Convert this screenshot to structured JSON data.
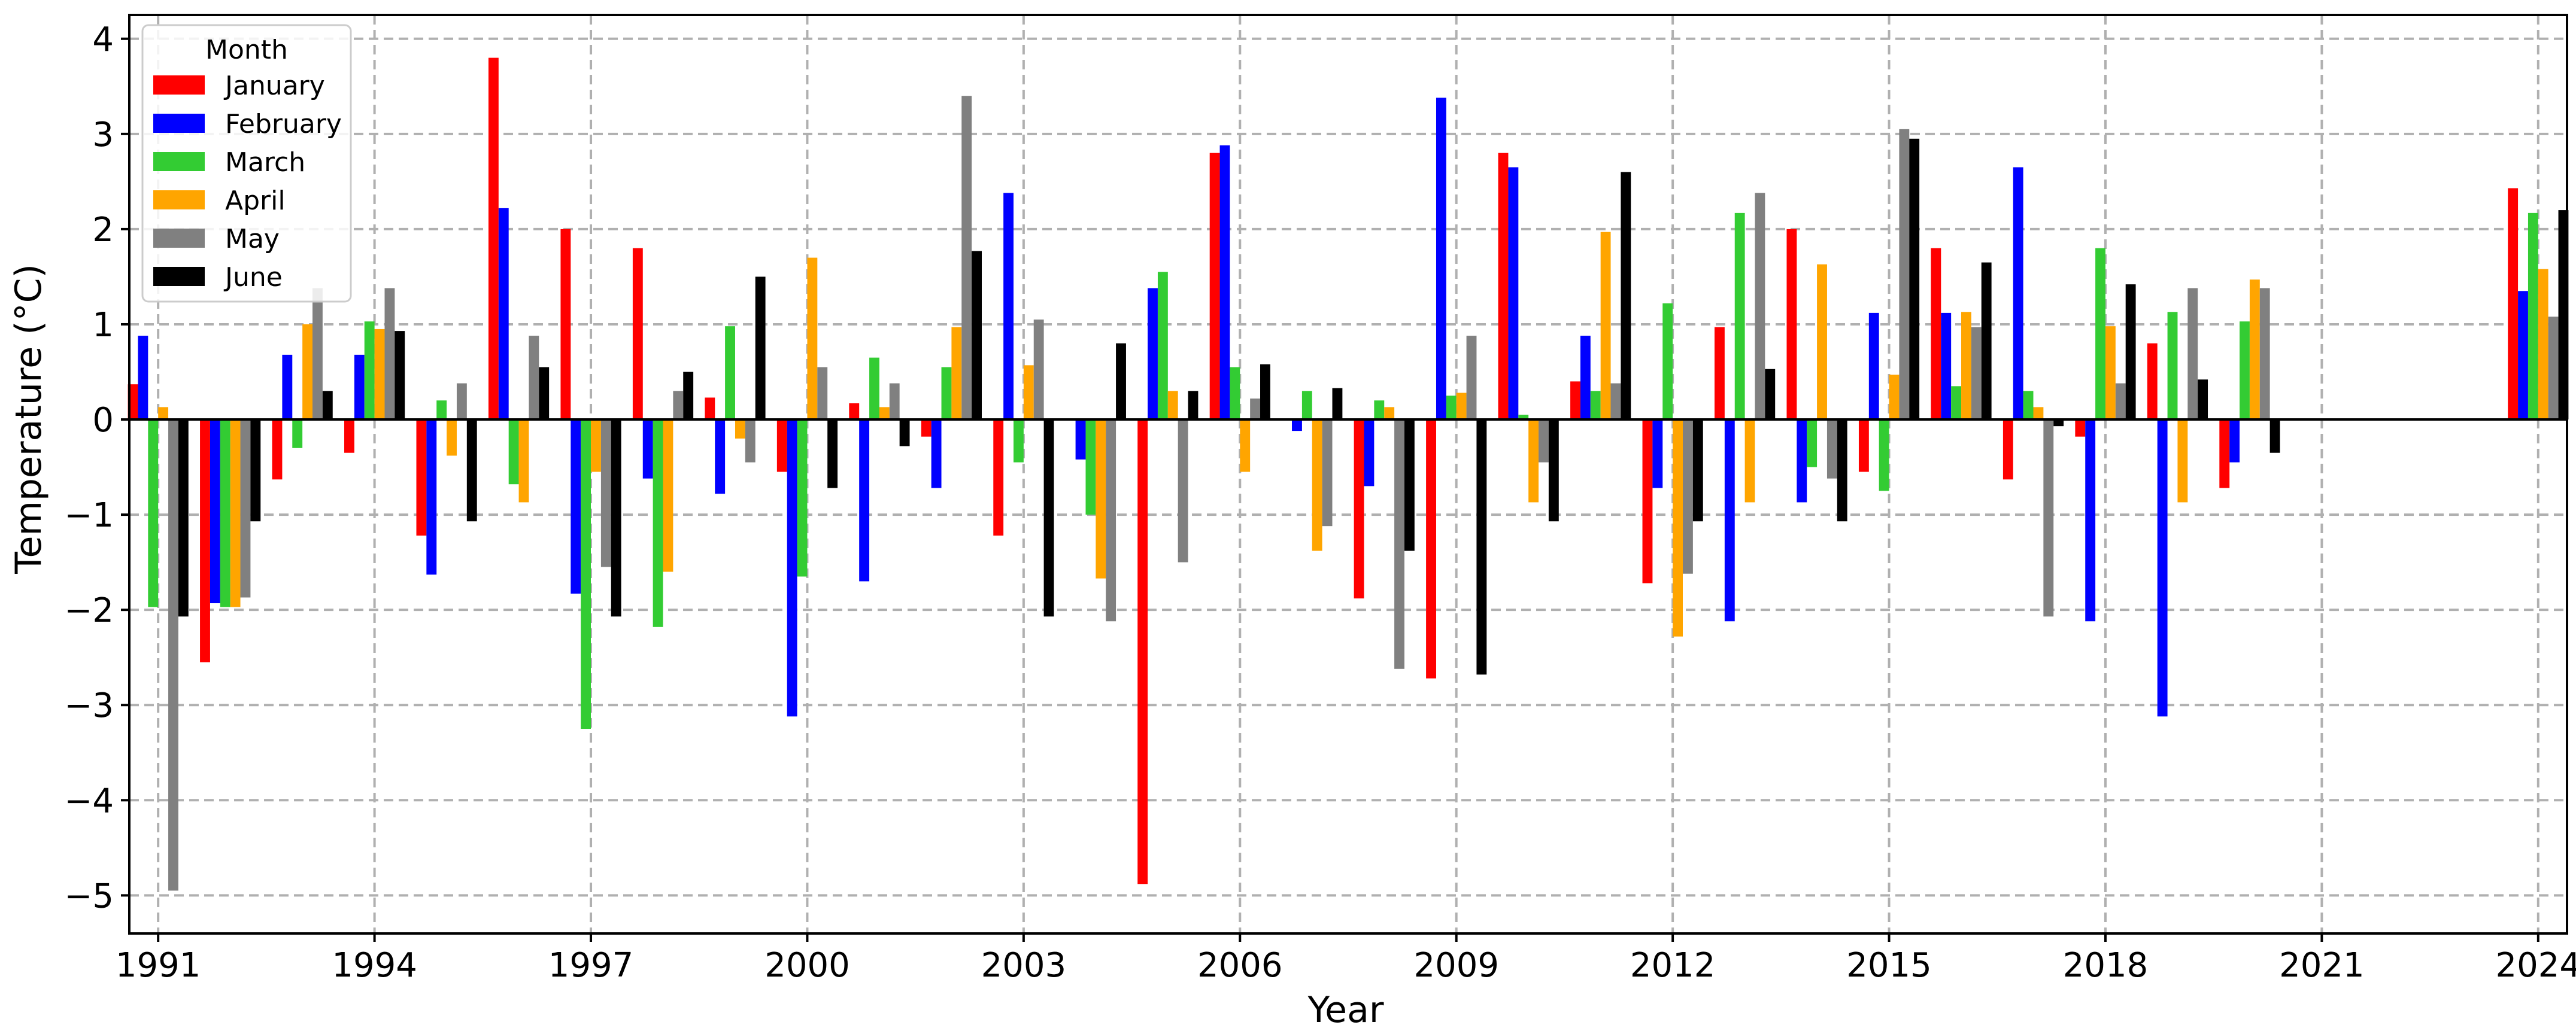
{
  "chart_data": {
    "type": "bar",
    "xlabel": "Year",
    "ylabel": "Temperature (°C)",
    "ylim": [
      -5.4,
      4.25
    ],
    "xlim": [
      1990.6,
      2024.4
    ],
    "grid": true,
    "legend": {
      "title": "Month",
      "placement": "top-left"
    },
    "x_ticks": [
      1991,
      1994,
      1997,
      2000,
      2003,
      2006,
      2009,
      2012,
      2015,
      2018,
      2021,
      2024
    ],
    "y_ticks": [
      -5,
      -4,
      -3,
      -2,
      -1,
      0,
      1,
      2,
      3,
      4
    ],
    "y_tick_labels": [
      "−5",
      "−4",
      "−3",
      "−2",
      "−1",
      "0",
      "1",
      "2",
      "3",
      "4"
    ],
    "categories": [
      1991,
      1992,
      1993,
      1994,
      1995,
      1996,
      1997,
      1998,
      1999,
      2000,
      2001,
      2002,
      2003,
      2004,
      2005,
      2006,
      2007,
      2008,
      2009,
      2010,
      2011,
      2012,
      2013,
      2014,
      2015,
      2016,
      2017,
      2018,
      2019,
      2020,
      2024
    ],
    "series": [
      {
        "name": "January",
        "color": "#ff0000",
        "values": [
          0.37,
          -2.55,
          -0.63,
          -0.35,
          -1.22,
          3.8,
          2.0,
          1.8,
          0.23,
          -0.55,
          0.17,
          -0.18,
          -1.22,
          0.0,
          -4.88,
          2.8,
          0.0,
          -1.88,
          -2.72,
          2.8,
          0.4,
          -1.72,
          0.97,
          2.0,
          -0.55,
          1.8,
          -0.63,
          -0.18,
          0.8,
          -0.72,
          2.43
        ]
      },
      {
        "name": "February",
        "color": "#0000ff",
        "values": [
          0.88,
          -1.93,
          0.68,
          0.68,
          -1.63,
          2.22,
          -1.83,
          -0.62,
          -0.78,
          -3.12,
          -1.7,
          -0.72,
          2.38,
          -0.42,
          1.38,
          2.88,
          -0.12,
          -0.7,
          3.38,
          2.65,
          0.88,
          -0.72,
          -2.12,
          -0.87,
          1.12,
          1.12,
          2.65,
          -2.12,
          -3.12,
          -0.45,
          1.35
        ]
      },
      {
        "name": "March",
        "color": "#33cc33",
        "values": [
          -1.97,
          -1.97,
          -0.3,
          1.03,
          0.2,
          -0.68,
          -3.25,
          -2.18,
          0.98,
          -1.65,
          0.65,
          0.55,
          -0.45,
          -1.0,
          1.55,
          0.55,
          0.3,
          0.2,
          0.25,
          0.05,
          0.3,
          1.22,
          2.17,
          -0.5,
          -0.75,
          0.35,
          0.3,
          1.8,
          1.13,
          1.03,
          2.17
        ]
      },
      {
        "name": "April",
        "color": "#ffa500",
        "values": [
          0.13,
          -1.97,
          1.0,
          0.95,
          -0.38,
          -0.87,
          -0.55,
          -1.6,
          -0.2,
          1.7,
          0.13,
          0.97,
          0.57,
          -1.67,
          0.3,
          -0.55,
          -1.38,
          0.13,
          0.28,
          -0.87,
          1.97,
          -2.28,
          -0.87,
          1.63,
          0.47,
          1.13,
          0.13,
          0.98,
          -0.87,
          1.47,
          1.58
        ]
      },
      {
        "name": "May",
        "color": "#808080",
        "values": [
          -4.95,
          -1.87,
          1.38,
          1.38,
          0.38,
          0.88,
          -1.55,
          0.3,
          -0.45,
          0.55,
          0.38,
          3.4,
          1.05,
          -2.12,
          -1.5,
          0.22,
          -1.12,
          -2.62,
          0.88,
          -0.45,
          0.38,
          -1.62,
          2.38,
          -0.62,
          3.05,
          0.97,
          -2.07,
          0.38,
          1.38,
          1.38,
          1.08
        ]
      },
      {
        "name": "June",
        "color": "#000000",
        "values": [
          -2.07,
          -1.07,
          0.3,
          0.93,
          -1.07,
          0.55,
          -2.07,
          0.5,
          1.5,
          -0.72,
          -0.28,
          1.77,
          -2.07,
          0.8,
          0.3,
          0.58,
          0.33,
          -1.38,
          -2.68,
          -1.07,
          2.6,
          -1.07,
          0.53,
          -1.07,
          2.95,
          1.65,
          -0.07,
          1.42,
          0.42,
          -0.35,
          2.2
        ]
      }
    ]
  }
}
